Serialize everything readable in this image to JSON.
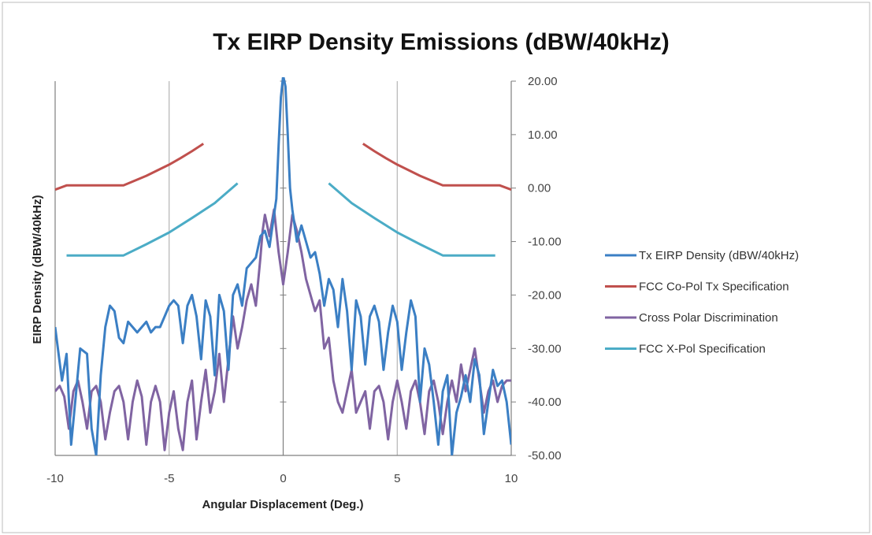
{
  "chart_data": {
    "type": "line",
    "title": "Tx EIRP Density Emissions (dBW/40kHz)",
    "xlabel": "Angular Displacement (Deg.)",
    "ylabel": "EIRP Density (dBW/40kHz)",
    "xlim": [
      -10,
      10
    ],
    "ylim": [
      -50,
      20
    ],
    "x_ticks": [
      "-10",
      "-5",
      "0",
      "5",
      "10"
    ],
    "y_ticks": [
      "20.00",
      "10.00",
      "0.00",
      "-10.00",
      "-20.00",
      "-30.00",
      "-40.00",
      "-50.00"
    ],
    "grid": "vertical",
    "legend_position": "right",
    "series": [
      {
        "name": "Tx EIRP Density (dBW/40kHz)",
        "color": "#3b7fc4",
        "points": [
          [
            -10,
            -26
          ],
          [
            -9.7,
            -36
          ],
          [
            -9.5,
            -31
          ],
          [
            -9.3,
            -48
          ],
          [
            -9.1,
            -39
          ],
          [
            -8.9,
            -30
          ],
          [
            -8.6,
            -31
          ],
          [
            -8.4,
            -45
          ],
          [
            -8.2,
            -50
          ],
          [
            -8,
            -35
          ],
          [
            -7.8,
            -26
          ],
          [
            -7.6,
            -22
          ],
          [
            -7.4,
            -23
          ],
          [
            -7.2,
            -28
          ],
          [
            -7,
            -29
          ],
          [
            -6.8,
            -25
          ],
          [
            -6.6,
            -26
          ],
          [
            -6.4,
            -27
          ],
          [
            -6.2,
            -26
          ],
          [
            -6,
            -25
          ],
          [
            -5.8,
            -27
          ],
          [
            -5.6,
            -26
          ],
          [
            -5.4,
            -26
          ],
          [
            -5.2,
            -24
          ],
          [
            -5,
            -22
          ],
          [
            -4.8,
            -21
          ],
          [
            -4.6,
            -22
          ],
          [
            -4.4,
            -29
          ],
          [
            -4.2,
            -22
          ],
          [
            -4,
            -20
          ],
          [
            -3.8,
            -24
          ],
          [
            -3.6,
            -32
          ],
          [
            -3.4,
            -21
          ],
          [
            -3.2,
            -24
          ],
          [
            -3,
            -35
          ],
          [
            -2.8,
            -20
          ],
          [
            -2.6,
            -23
          ],
          [
            -2.4,
            -34
          ],
          [
            -2.2,
            -20
          ],
          [
            -2,
            -18
          ],
          [
            -1.8,
            -22
          ],
          [
            -1.6,
            -15
          ],
          [
            -1.4,
            -14
          ],
          [
            -1.2,
            -13
          ],
          [
            -1,
            -9
          ],
          [
            -0.8,
            -8
          ],
          [
            -0.6,
            -11
          ],
          [
            -0.4,
            -5
          ],
          [
            -0.3,
            -2
          ],
          [
            -0.2,
            8
          ],
          [
            -0.1,
            17
          ],
          [
            0,
            21
          ],
          [
            0.1,
            19
          ],
          [
            0.2,
            10
          ],
          [
            0.3,
            0
          ],
          [
            0.4,
            -4
          ],
          [
            0.6,
            -10
          ],
          [
            0.8,
            -7
          ],
          [
            1,
            -10
          ],
          [
            1.2,
            -13
          ],
          [
            1.4,
            -12
          ],
          [
            1.6,
            -16
          ],
          [
            1.8,
            -22
          ],
          [
            2,
            -17
          ],
          [
            2.2,
            -19
          ],
          [
            2.4,
            -26
          ],
          [
            2.6,
            -17
          ],
          [
            2.8,
            -23
          ],
          [
            3,
            -34
          ],
          [
            3.2,
            -21
          ],
          [
            3.4,
            -24
          ],
          [
            3.6,
            -33
          ],
          [
            3.8,
            -24
          ],
          [
            4,
            -22
          ],
          [
            4.2,
            -25
          ],
          [
            4.4,
            -34
          ],
          [
            4.6,
            -27
          ],
          [
            4.8,
            -22
          ],
          [
            5,
            -25
          ],
          [
            5.2,
            -34
          ],
          [
            5.4,
            -27
          ],
          [
            5.6,
            -21
          ],
          [
            5.8,
            -24
          ],
          [
            6,
            -40
          ],
          [
            6.2,
            -30
          ],
          [
            6.4,
            -33
          ],
          [
            6.6,
            -40
          ],
          [
            6.8,
            -48
          ],
          [
            7,
            -38
          ],
          [
            7.2,
            -35
          ],
          [
            7.4,
            -50
          ],
          [
            7.6,
            -42
          ],
          [
            7.8,
            -39
          ],
          [
            8,
            -35
          ],
          [
            8.2,
            -40
          ],
          [
            8.4,
            -32
          ],
          [
            8.6,
            -35
          ],
          [
            8.8,
            -46
          ],
          [
            9,
            -40
          ],
          [
            9.2,
            -34
          ],
          [
            9.4,
            -37
          ],
          [
            9.6,
            -36
          ],
          [
            9.8,
            -40
          ],
          [
            10,
            -48
          ]
        ]
      },
      {
        "name": "FCC Co-Pol Tx Specification",
        "color": "#c0504d",
        "segments": [
          [
            [
              -10,
              -0.3
            ],
            [
              -9.5,
              0.5
            ],
            [
              -7,
              0.5
            ],
            [
              -6,
              2.3
            ],
            [
              -5,
              4.4
            ],
            [
              -4.5,
              5.6
            ],
            [
              -4,
              6.9
            ],
            [
              -3.5,
              8.3
            ]
          ],
          [
            [
              3.5,
              8.3
            ],
            [
              4,
              6.9
            ],
            [
              4.5,
              5.6
            ],
            [
              5,
              4.4
            ],
            [
              6,
              2.3
            ],
            [
              7,
              0.5
            ],
            [
              9.5,
              0.5
            ],
            [
              10,
              -0.3
            ]
          ]
        ]
      },
      {
        "name": "Cross Polar Discrimination",
        "color": "#8064a2",
        "points": [
          [
            -10,
            -38
          ],
          [
            -9.8,
            -37
          ],
          [
            -9.6,
            -39
          ],
          [
            -9.4,
            -45
          ],
          [
            -9.2,
            -38
          ],
          [
            -9,
            -36
          ],
          [
            -8.8,
            -40
          ],
          [
            -8.6,
            -45
          ],
          [
            -8.4,
            -38
          ],
          [
            -8.2,
            -37
          ],
          [
            -8,
            -40
          ],
          [
            -7.8,
            -47
          ],
          [
            -7.6,
            -42
          ],
          [
            -7.4,
            -38
          ],
          [
            -7.2,
            -37
          ],
          [
            -7,
            -40
          ],
          [
            -6.8,
            -47
          ],
          [
            -6.6,
            -40
          ],
          [
            -6.4,
            -36
          ],
          [
            -6.2,
            -39
          ],
          [
            -6,
            -48
          ],
          [
            -5.8,
            -40
          ],
          [
            -5.6,
            -37
          ],
          [
            -5.4,
            -40
          ],
          [
            -5.2,
            -49
          ],
          [
            -5,
            -42
          ],
          [
            -4.8,
            -38
          ],
          [
            -4.6,
            -45
          ],
          [
            -4.4,
            -49
          ],
          [
            -4.2,
            -40
          ],
          [
            -4,
            -36
          ],
          [
            -3.8,
            -47
          ],
          [
            -3.6,
            -40
          ],
          [
            -3.4,
            -34
          ],
          [
            -3.2,
            -42
          ],
          [
            -3,
            -38
          ],
          [
            -2.8,
            -31
          ],
          [
            -2.6,
            -40
          ],
          [
            -2.4,
            -32
          ],
          [
            -2.2,
            -24
          ],
          [
            -2,
            -30
          ],
          [
            -1.8,
            -26
          ],
          [
            -1.6,
            -21
          ],
          [
            -1.4,
            -18
          ],
          [
            -1.2,
            -22
          ],
          [
            -1,
            -13
          ],
          [
            -0.9,
            -8
          ],
          [
            -0.8,
            -5
          ],
          [
            -0.6,
            -9
          ],
          [
            -0.4,
            -4
          ],
          [
            -0.2,
            -12
          ],
          [
            0,
            -18
          ],
          [
            0.2,
            -12
          ],
          [
            0.4,
            -5
          ],
          [
            0.6,
            -8
          ],
          [
            0.8,
            -12
          ],
          [
            1,
            -17
          ],
          [
            1.2,
            -20
          ],
          [
            1.4,
            -23
          ],
          [
            1.6,
            -21
          ],
          [
            1.8,
            -30
          ],
          [
            2,
            -28
          ],
          [
            2.2,
            -36
          ],
          [
            2.4,
            -40
          ],
          [
            2.6,
            -42
          ],
          [
            2.8,
            -38
          ],
          [
            3,
            -34
          ],
          [
            3.2,
            -42
          ],
          [
            3.4,
            -40
          ],
          [
            3.6,
            -38
          ],
          [
            3.8,
            -45
          ],
          [
            4,
            -38
          ],
          [
            4.2,
            -37
          ],
          [
            4.4,
            -40
          ],
          [
            4.6,
            -47
          ],
          [
            4.8,
            -40
          ],
          [
            5,
            -36
          ],
          [
            5.2,
            -40
          ],
          [
            5.4,
            -45
          ],
          [
            5.6,
            -38
          ],
          [
            5.8,
            -36
          ],
          [
            6,
            -40
          ],
          [
            6.2,
            -46
          ],
          [
            6.4,
            -38
          ],
          [
            6.6,
            -36
          ],
          [
            6.8,
            -40
          ],
          [
            7,
            -46
          ],
          [
            7.2,
            -40
          ],
          [
            7.4,
            -36
          ],
          [
            7.6,
            -40
          ],
          [
            7.8,
            -33
          ],
          [
            8,
            -38
          ],
          [
            8.2,
            -34
          ],
          [
            8.4,
            -30
          ],
          [
            8.6,
            -36
          ],
          [
            8.8,
            -42
          ],
          [
            9,
            -38
          ],
          [
            9.2,
            -36
          ],
          [
            9.4,
            -40
          ],
          [
            9.6,
            -37
          ],
          [
            9.8,
            -36
          ],
          [
            10,
            -36
          ]
        ]
      },
      {
        "name": "FCC X-Pol Specification",
        "color": "#4bacc6",
        "segments": [
          [
            [
              -9.5,
              -12.6
            ],
            [
              -7,
              -12.6
            ],
            [
              -6,
              -10.5
            ],
            [
              -5,
              -8.3
            ],
            [
              -4,
              -5.6
            ],
            [
              -3,
              -2.8
            ],
            [
              -2,
              0.9
            ]
          ],
          [
            [
              2,
              0.9
            ],
            [
              3,
              -2.8
            ],
            [
              4,
              -5.6
            ],
            [
              5,
              -8.3
            ],
            [
              6,
              -10.5
            ],
            [
              7,
              -12.6
            ],
            [
              9.3,
              -12.6
            ]
          ]
        ]
      }
    ]
  }
}
